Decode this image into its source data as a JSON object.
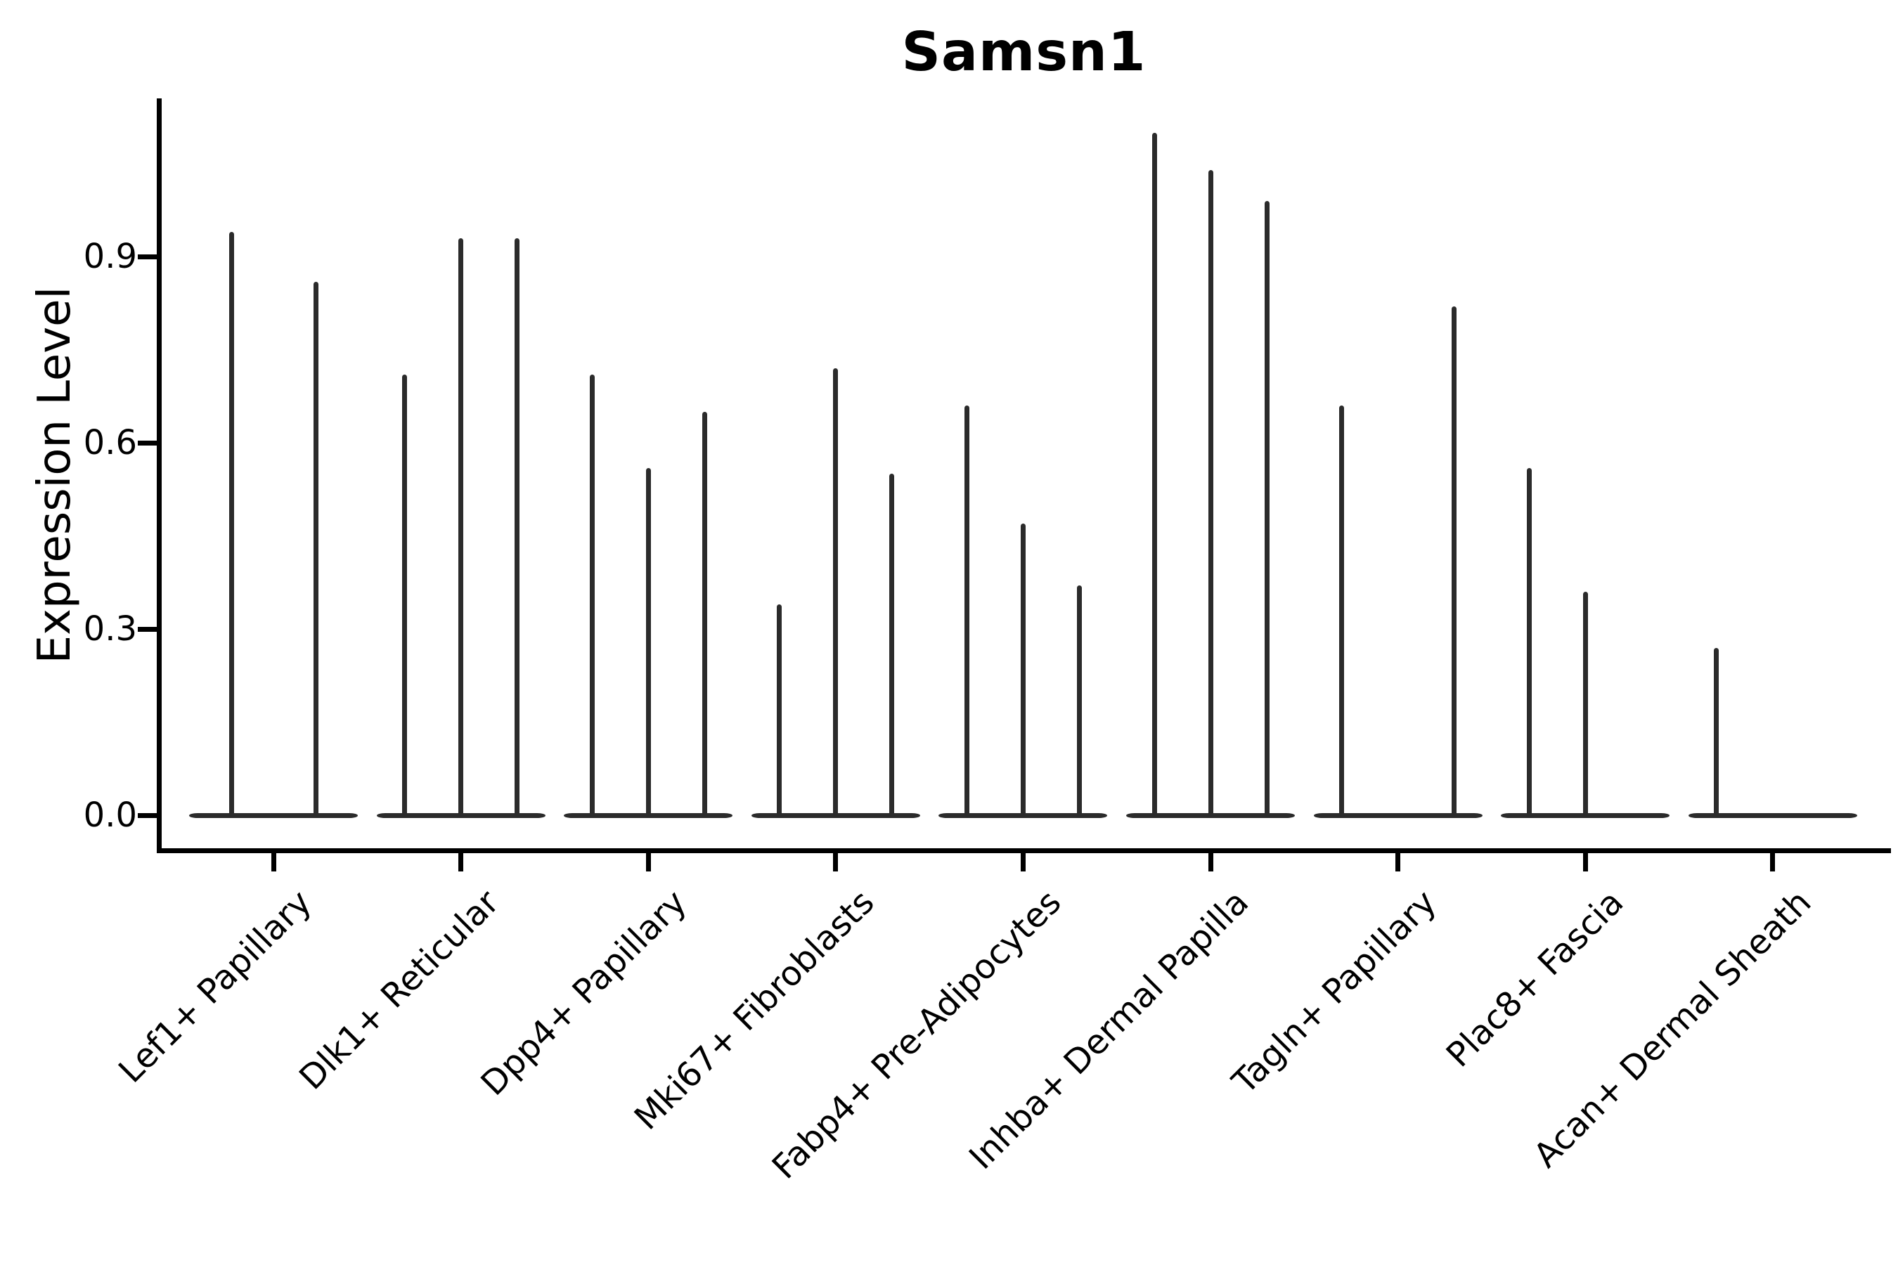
{
  "title": "Samsn1",
  "y_axis": {
    "label": "Expression Level",
    "ticks": [
      {
        "label": "0.0",
        "value": 0.0
      },
      {
        "label": "0.3",
        "value": 0.3
      },
      {
        "label": "0.6",
        "value": 0.6
      },
      {
        "label": "0.9",
        "value": 0.9
      }
    ]
  },
  "x_axis": {
    "categories": [
      "Lef1+ Papillary",
      "Dlk1+ Reticular",
      "Dpp4+ Papillary",
      "Mki67+ Fibroblasts",
      "Fabp4+ Pre-Adipocytes",
      "Inhba+ Dermal Papilla",
      "Tagln+ Papillary",
      "Plac8+ Fascia",
      "Acan+ Dermal Sheath"
    ]
  },
  "chart_data": {
    "type": "violin",
    "title": "Samsn1",
    "xlabel": "",
    "ylabel": "Expression Level",
    "ylim": [
      -0.05,
      1.17
    ],
    "yticks": [
      0.0,
      0.3,
      0.6,
      0.9
    ],
    "grid": false,
    "legend": false,
    "note": "Single-cell expression violin plot. Each category holds 1-3 very thin split violins: a flat density base at 0 plus a narrow spike rising to the max expression value. A value of 0 means that sub-violin is completely flat (no spike).",
    "categories": [
      "Lef1+ Papillary",
      "Dlk1+ Reticular",
      "Dpp4+ Papillary",
      "Mki67+ Fibroblasts",
      "Fabp4+ Pre-Adipocytes",
      "Inhba+ Dermal Papilla",
      "Tagln+ Papillary",
      "Plac8+ Fascia",
      "Acan+ Dermal Sheath"
    ],
    "groups": [
      {
        "category": "Lef1+ Papillary",
        "spike_heights": [
          0.94,
          0.86
        ]
      },
      {
        "category": "Dlk1+ Reticular",
        "spike_heights": [
          0.71,
          0.93,
          0.93
        ]
      },
      {
        "category": "Dpp4+ Papillary",
        "spike_heights": [
          0.71,
          0.56,
          0.65
        ]
      },
      {
        "category": "Mki67+ Fibroblasts",
        "spike_heights": [
          0.34,
          0.72,
          0.55
        ]
      },
      {
        "category": "Fabp4+ Pre-Adipocytes",
        "spike_heights": [
          0.66,
          0.47,
          0.37
        ]
      },
      {
        "category": "Inhba+ Dermal Papilla",
        "spike_heights": [
          1.1,
          1.04,
          0.99
        ]
      },
      {
        "category": "Tagln+ Papillary",
        "spike_heights": [
          0.66,
          0.0,
          0.82
        ]
      },
      {
        "category": "Plac8+ Fascia",
        "spike_heights": [
          0.56,
          0.36,
          0.0
        ]
      },
      {
        "category": "Acan+ Dermal Sheath",
        "spike_heights": [
          0.27,
          0.0,
          0.0
        ]
      }
    ],
    "colors": {
      "violin": "#2b2b2b",
      "axis": "#000000",
      "background": "#ffffff"
    }
  }
}
